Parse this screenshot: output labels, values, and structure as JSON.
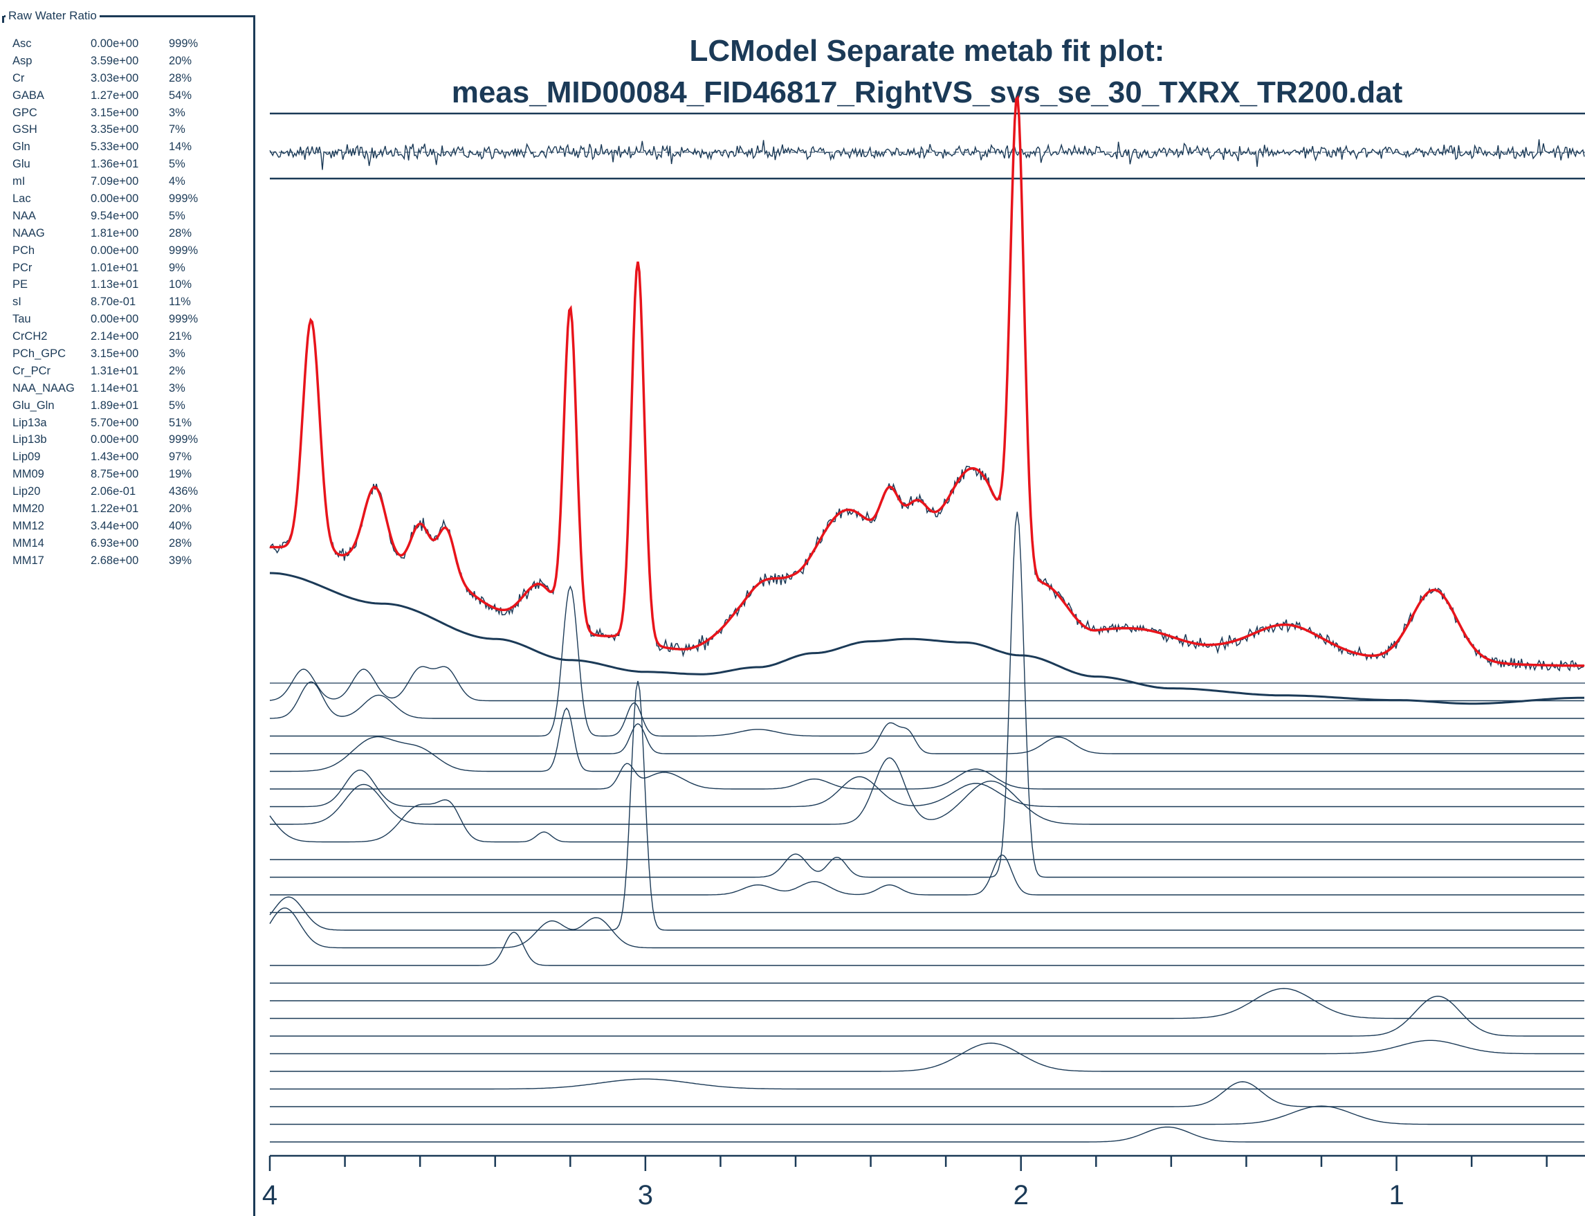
{
  "legend": {
    "title": "Raw Water Ratio",
    "rows": [
      {
        "name": "Asc",
        "value": "0.00e+00",
        "sd": "999%"
      },
      {
        "name": "Asp",
        "value": "3.59e+00",
        "sd": "20%"
      },
      {
        "name": "Cr",
        "value": "3.03e+00",
        "sd": "28%"
      },
      {
        "name": "GABA",
        "value": "1.27e+00",
        "sd": "54%"
      },
      {
        "name": "GPC",
        "value": "3.15e+00",
        "sd": "3%"
      },
      {
        "name": "GSH",
        "value": "3.35e+00",
        "sd": "7%"
      },
      {
        "name": "Gln",
        "value": "5.33e+00",
        "sd": "14%"
      },
      {
        "name": "Glu",
        "value": "1.36e+01",
        "sd": "5%"
      },
      {
        "name": "mI",
        "value": "7.09e+00",
        "sd": "4%"
      },
      {
        "name": "Lac",
        "value": "0.00e+00",
        "sd": "999%"
      },
      {
        "name": "NAA",
        "value": "9.54e+00",
        "sd": "5%"
      },
      {
        "name": "NAAG",
        "value": "1.81e+00",
        "sd": "28%"
      },
      {
        "name": "PCh",
        "value": "0.00e+00",
        "sd": "999%"
      },
      {
        "name": "PCr",
        "value": "1.01e+01",
        "sd": "9%"
      },
      {
        "name": "PE",
        "value": "1.13e+01",
        "sd": "10%"
      },
      {
        "name": "sI",
        "value": "8.70e-01",
        "sd": "11%"
      },
      {
        "name": "Tau",
        "value": "0.00e+00",
        "sd": "999%"
      },
      {
        "name": "CrCH2",
        "value": "2.14e+00",
        "sd": "21%"
      },
      {
        "name": "PCh_GPC",
        "value": "3.15e+00",
        "sd": "3%"
      },
      {
        "name": "Cr_PCr",
        "value": "1.31e+01",
        "sd": "2%"
      },
      {
        "name": "NAA_NAAG",
        "value": "1.14e+01",
        "sd": "3%"
      },
      {
        "name": "Glu_Gln",
        "value": "1.89e+01",
        "sd": "5%"
      },
      {
        "name": "Lip13a",
        "value": "5.70e+00",
        "sd": "51%"
      },
      {
        "name": "Lip13b",
        "value": "0.00e+00",
        "sd": "999%"
      },
      {
        "name": "Lip09",
        "value": "1.43e+00",
        "sd": "97%"
      },
      {
        "name": "MM09",
        "value": "8.75e+00",
        "sd": "19%"
      },
      {
        "name": "Lip20",
        "value": "2.06e-01",
        "sd": "436%"
      },
      {
        "name": "MM20",
        "value": "1.22e+01",
        "sd": "20%"
      },
      {
        "name": "MM12",
        "value": "3.44e+00",
        "sd": "40%"
      },
      {
        "name": "MM14",
        "value": "6.93e+00",
        "sd": "28%"
      },
      {
        "name": "MM17",
        "value": "2.68e+00",
        "sd": "39%"
      }
    ]
  },
  "chart_data": {
    "type": "line",
    "title_lines": [
      "LCModel Separate metab fit plot:",
      "meas_MID00084_FID46817_RightVS_svs_se_30_TXRX_TR200.dat"
    ],
    "xlabel": "",
    "ylabel": "",
    "x_reversed": true,
    "xlim": [
      4.0,
      0.5
    ],
    "x_ticks": [
      4,
      3,
      2,
      1
    ],
    "x_minor_step": 0.2,
    "colors": {
      "data": "#1b3a57",
      "fit": "#e8141b",
      "axis": "#1b3a57"
    },
    "fit": {
      "baseline_offset": 0.8,
      "peaks": [
        [
          3.89,
          0.022,
          7.0
        ],
        [
          3.72,
          0.03,
          2.3
        ],
        [
          3.6,
          0.025,
          1.3
        ],
        [
          3.53,
          0.022,
          1.4
        ],
        [
          3.28,
          0.04,
          1.0
        ],
        [
          3.2,
          0.017,
          9.6
        ],
        [
          3.02,
          0.017,
          11.5
        ],
        [
          2.7,
          0.05,
          1.1
        ],
        [
          2.48,
          0.08,
          2.0
        ],
        [
          2.35,
          0.025,
          1.6
        ],
        [
          2.28,
          0.03,
          1.0
        ],
        [
          2.13,
          0.06,
          2.0
        ],
        [
          2.01,
          0.018,
          14.0
        ],
        [
          1.65,
          0.09,
          0.3
        ],
        [
          1.29,
          0.09,
          0.9
        ],
        [
          0.9,
          0.06,
          2.2
        ]
      ],
      "background": [
        [
          4.0,
          3.6
        ],
        [
          3.6,
          3.0
        ],
        [
          3.35,
          1.6
        ],
        [
          3.1,
          0.9
        ],
        [
          2.9,
          0.5
        ],
        [
          2.75,
          1.1
        ],
        [
          2.6,
          2.0
        ],
        [
          2.4,
          3.0
        ],
        [
          2.25,
          3.9
        ],
        [
          2.1,
          4.0
        ],
        [
          1.95,
          2.5
        ],
        [
          1.8,
          1.0
        ],
        [
          1.5,
          0.5
        ],
        [
          1.2,
          0.3
        ],
        [
          0.9,
          0.1
        ],
        [
          0.5,
          0.0
        ]
      ],
      "y_range": [
        0,
        15.5
      ]
    },
    "baseline_curve": {
      "points": [
        [
          4.0,
          5.5
        ],
        [
          3.7,
          4.2
        ],
        [
          3.4,
          2.7
        ],
        [
          3.2,
          1.8
        ],
        [
          3.0,
          1.3
        ],
        [
          2.85,
          1.2
        ],
        [
          2.7,
          1.5
        ],
        [
          2.55,
          2.1
        ],
        [
          2.4,
          2.6
        ],
        [
          2.3,
          2.7
        ],
        [
          2.15,
          2.55
        ],
        [
          2.0,
          2.0
        ],
        [
          1.8,
          1.1
        ],
        [
          1.6,
          0.6
        ],
        [
          1.3,
          0.3
        ],
        [
          1.0,
          0.1
        ],
        [
          0.8,
          -0.05
        ],
        [
          0.5,
          0.2
        ]
      ]
    },
    "residual": {
      "amplitude": 1.0
    },
    "components": [
      {
        "label": "Asc",
        "offset": 0,
        "peaks": [
          [
            3.91,
            0.03,
            0.95
          ],
          [
            3.75,
            0.03,
            0.95
          ],
          [
            3.6,
            0.03,
            0.95
          ],
          [
            3.53,
            0.03,
            0.95
          ]
        ]
      },
      {
        "label": "Asp",
        "offset": 0,
        "peaks": [
          [
            3.89,
            0.03,
            1.1
          ],
          [
            3.71,
            0.04,
            0.7
          ]
        ]
      },
      {
        "label": "Cr",
        "offset": 0,
        "peaks": [
          [
            3.2,
            0.02,
            4.5
          ],
          [
            3.03,
            0.02,
            1.0
          ],
          [
            2.7,
            0.05,
            0.2
          ]
        ]
      },
      {
        "label": "GABA",
        "offset": 0,
        "peaks": [
          [
            3.02,
            0.02,
            0.9
          ],
          [
            2.35,
            0.025,
            0.9
          ],
          [
            2.3,
            0.02,
            0.6
          ],
          [
            1.9,
            0.04,
            0.5
          ]
        ]
      },
      {
        "label": "GPC",
        "offset": 0,
        "peaks": [
          [
            3.72,
            0.06,
            1.0
          ],
          [
            3.6,
            0.05,
            0.6
          ],
          [
            3.21,
            0.018,
            1.9
          ]
        ]
      },
      {
        "label": "GSH",
        "offset": 0,
        "peaks": [
          [
            3.05,
            0.02,
            0.7
          ],
          [
            2.95,
            0.05,
            0.5
          ],
          [
            2.55,
            0.04,
            0.3
          ],
          [
            2.12,
            0.05,
            0.6
          ]
        ]
      },
      {
        "label": "Gln",
        "offset": 0,
        "peaks": [
          [
            3.76,
            0.04,
            1.1
          ],
          [
            2.43,
            0.05,
            0.9
          ],
          [
            2.12,
            0.06,
            0.7
          ]
        ]
      },
      {
        "label": "Glu",
        "offset": 0,
        "peaks": [
          [
            3.75,
            0.05,
            1.2
          ],
          [
            2.35,
            0.04,
            2.0
          ],
          [
            2.08,
            0.07,
            1.3
          ]
        ]
      },
      {
        "label": "mI",
        "offset": 0,
        "peaks": [
          [
            4.05,
            0.05,
            1.3
          ],
          [
            3.6,
            0.05,
            1.1
          ],
          [
            3.52,
            0.03,
            0.9
          ],
          [
            3.27,
            0.02,
            0.3
          ]
        ]
      },
      {
        "label": "Lac",
        "offset": 0,
        "peaks": []
      },
      {
        "label": "NAA",
        "offset": 0,
        "peaks": [
          [
            2.6,
            0.03,
            0.7
          ],
          [
            2.49,
            0.025,
            0.6
          ],
          [
            2.01,
            0.018,
            11.0
          ]
        ]
      },
      {
        "label": "NAAG",
        "offset": 0,
        "peaks": [
          [
            2.7,
            0.04,
            0.3
          ],
          [
            2.55,
            0.04,
            0.4
          ],
          [
            2.35,
            0.03,
            0.3
          ],
          [
            2.05,
            0.025,
            1.2
          ]
        ]
      },
      {
        "label": "PCh",
        "offset": 0,
        "peaks": []
      },
      {
        "label": "PCr",
        "offset": 0,
        "peaks": [
          [
            3.95,
            0.04,
            1.0
          ],
          [
            3.02,
            0.018,
            7.5
          ]
        ]
      },
      {
        "label": "PE",
        "offset": 0,
        "peaks": [
          [
            3.96,
            0.04,
            1.2
          ],
          [
            3.25,
            0.04,
            0.8
          ],
          [
            3.13,
            0.04,
            0.9
          ]
        ]
      },
      {
        "label": "sI",
        "offset": 0,
        "peaks": [
          [
            3.35,
            0.025,
            1.0
          ]
        ]
      },
      {
        "label": "Tau",
        "offset": 0,
        "peaks": []
      },
      {
        "label": "Lip13a",
        "offset": 0,
        "peaks": []
      },
      {
        "label": "Lip13b",
        "offset": 0,
        "peaks": [
          [
            1.3,
            0.08,
            0.9
          ]
        ]
      },
      {
        "label": "Lip09",
        "offset": 0,
        "peaks": [
          [
            0.89,
            0.06,
            1.2
          ]
        ]
      },
      {
        "label": "MM09",
        "offset": 0,
        "peaks": [
          [
            0.91,
            0.08,
            0.4
          ]
        ]
      },
      {
        "label": "Lip20",
        "offset": 0,
        "peaks": [
          [
            2.08,
            0.08,
            0.85
          ]
        ]
      },
      {
        "label": "MM20",
        "offset": 0,
        "peaks": [
          [
            3.0,
            0.12,
            0.3
          ]
        ]
      },
      {
        "label": "MM12",
        "offset": 0,
        "peaks": [
          [
            1.41,
            0.05,
            0.75
          ]
        ]
      },
      {
        "label": "MM14",
        "offset": 0,
        "peaks": [
          [
            1.2,
            0.08,
            0.55
          ]
        ]
      },
      {
        "label": "MM17",
        "offset": 0,
        "peaks": [
          [
            1.61,
            0.06,
            0.45
          ]
        ]
      }
    ]
  }
}
